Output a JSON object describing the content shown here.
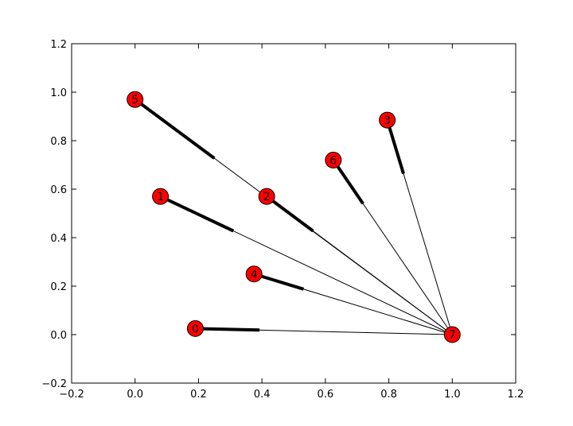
{
  "chart_data": {
    "type": "network",
    "xlim": [
      -0.2,
      1.2
    ],
    "ylim": [
      -0.2,
      1.2
    ],
    "x_ticks": [
      -0.2,
      0.0,
      0.2,
      0.4,
      0.6,
      0.8,
      1.0,
      1.2
    ],
    "y_ticks": [
      -0.2,
      0.0,
      0.2,
      0.4,
      0.6,
      0.8,
      1.0,
      1.2
    ],
    "x_tick_labels": [
      "−0.2",
      "0.0",
      "0.2",
      "0.4",
      "0.6",
      "0.8",
      "1.0",
      "1.2"
    ],
    "y_tick_labels": [
      "−0.2",
      "0.0",
      "0.2",
      "0.4",
      "0.6",
      "0.8",
      "1.0",
      "1.2"
    ],
    "grid": false,
    "node_color": "#ff0000",
    "edge_color": "#000000",
    "nodes": [
      {
        "id": "0",
        "x": 0.19,
        "y": 0.025
      },
      {
        "id": "1",
        "x": 0.08,
        "y": 0.57
      },
      {
        "id": "2",
        "x": 0.415,
        "y": 0.57
      },
      {
        "id": "3",
        "x": 0.795,
        "y": 0.885
      },
      {
        "id": "4",
        "x": 0.375,
        "y": 0.25
      },
      {
        "id": "5",
        "x": 0.0,
        "y": 0.97
      },
      {
        "id": "6",
        "x": 0.625,
        "y": 0.72
      },
      {
        "id": "7",
        "x": 1.0,
        "y": 0.0
      }
    ],
    "edges": [
      {
        "source": "0",
        "target": "7"
      },
      {
        "source": "1",
        "target": "7"
      },
      {
        "source": "2",
        "target": "7"
      },
      {
        "source": "3",
        "target": "7"
      },
      {
        "source": "4",
        "target": "7"
      },
      {
        "source": "5",
        "target": "7"
      },
      {
        "source": "6",
        "target": "7"
      }
    ],
    "directed": true
  }
}
